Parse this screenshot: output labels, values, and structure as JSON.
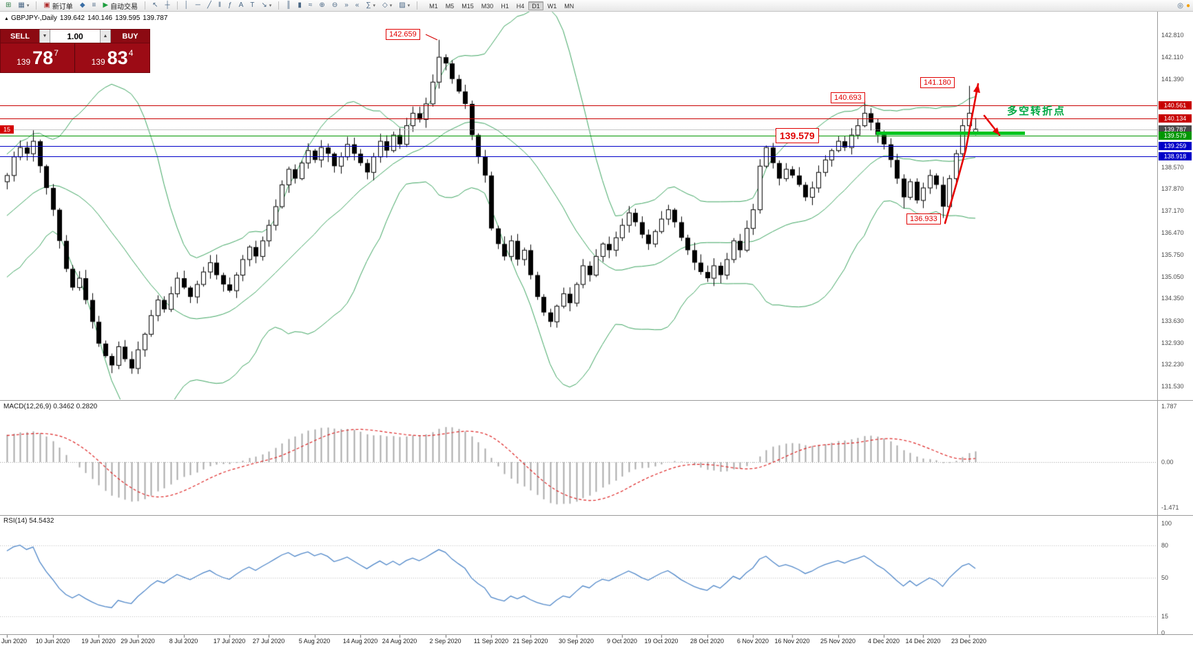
{
  "toolbar": {
    "items": [
      {
        "name": "new-chart",
        "glyph": "⊞",
        "color": "#2f7d46"
      },
      {
        "name": "profiles",
        "glyph": "▦",
        "dd": true
      },
      {
        "name": "sep"
      },
      {
        "name": "new-order",
        "glyph": "▣",
        "label": "新订单",
        "color": "#b03030"
      },
      {
        "name": "expert-advisors",
        "glyph": "◆",
        "color": "#3a6ea5"
      },
      {
        "name": "scripts",
        "glyph": "≡"
      },
      {
        "name": "autotrading",
        "glyph": "▶",
        "label": "自动交易",
        "color": "#1d9e3f"
      },
      {
        "name": "sep"
      },
      {
        "name": "cursor",
        "glyph": "↖"
      },
      {
        "name": "crosshair",
        "glyph": "┼"
      },
      {
        "name": "sep"
      },
      {
        "name": "vertical-line",
        "glyph": "│"
      },
      {
        "name": "horizontal-line",
        "glyph": "─"
      },
      {
        "name": "trendline",
        "glyph": "╱"
      },
      {
        "name": "equidistant-channel",
        "glyph": "‖"
      },
      {
        "name": "fibonacci-retracement",
        "glyph": "ƒ"
      },
      {
        "name": "text",
        "glyph": "A"
      },
      {
        "name": "text-label",
        "glyph": "T"
      },
      {
        "name": "arrows",
        "glyph": "↘",
        "dd": true
      },
      {
        "name": "sep"
      },
      {
        "name": "bar-chart",
        "glyph": "║"
      },
      {
        "name": "candlestick-chart",
        "glyph": "▮"
      },
      {
        "name": "line-chart",
        "glyph": "≈"
      },
      {
        "name": "zoom-in",
        "glyph": "⊕"
      },
      {
        "name": "zoom-out",
        "glyph": "⊖"
      },
      {
        "name": "auto-scroll",
        "glyph": "»"
      },
      {
        "name": "chart-shift",
        "glyph": "«"
      },
      {
        "name": "indicators",
        "glyph": "∑",
        "dd": true
      },
      {
        "name": "periods",
        "glyph": "◇",
        "dd": true
      },
      {
        "name": "templates",
        "glyph": "▨",
        "dd": true
      },
      {
        "name": "sep"
      }
    ],
    "timeframes": [
      {
        "label": "M1"
      },
      {
        "label": "M5"
      },
      {
        "label": "M15"
      },
      {
        "label": "M30"
      },
      {
        "label": "H1"
      },
      {
        "label": "H4"
      },
      {
        "label": "D1",
        "active": true
      },
      {
        "label": "W1"
      },
      {
        "label": "MN"
      }
    ],
    "right_icons": [
      {
        "name": "search",
        "glyph": "◎",
        "color": "#4a6785"
      },
      {
        "name": "alert",
        "glyph": "●",
        "color": "#f5a000"
      }
    ]
  },
  "ohlc_info": {
    "symbol": "GBPJPY-,Daily",
    "open": "139.642",
    "high": "140.146",
    "low": "139.595",
    "close": "139.787"
  },
  "trade_panel": {
    "sell_label": "SELL",
    "buy_label": "BUY",
    "lot_value": "1.00",
    "sell": {
      "prefix": "139",
      "big": "78",
      "sup": "7"
    },
    "buy": {
      "prefix": "139",
      "big": "83",
      "sup": "4"
    }
  },
  "left_tag": {
    "value": "15"
  },
  "annotations": {
    "peak_price": "142.659",
    "swing_high": "141.180",
    "breakout_level": "140.693",
    "entry_level": "139.579",
    "swing_low": "136.933",
    "note": "多空转折点"
  },
  "axis": {
    "price_labels": [
      "142.810",
      "142.110",
      "141.390",
      "138.570",
      "137.870",
      "137.170",
      "136.470",
      "135.750",
      "135.050",
      "134.350",
      "133.630",
      "132.930",
      "132.230",
      "131.530"
    ],
    "line_tags": [
      {
        "value": "140.561",
        "color": "#c80000",
        "style": "solid"
      },
      {
        "value": "140.134",
        "color": "#c80000",
        "style": "solid"
      },
      {
        "value": "139.787",
        "color": "#4a4a4a",
        "style": "dotted"
      },
      {
        "value": "139.579",
        "color": "#009600",
        "style": "solid"
      },
      {
        "value": "139.259",
        "color": "#0000c8",
        "style": "solid"
      },
      {
        "value": "138.918",
        "color": "#0000c8",
        "style": "solid"
      }
    ]
  },
  "macd": {
    "label": "MACD(12,26,9) 0.3462 0.2820",
    "scale": [
      {
        "v": 1.787,
        "label": "1.787"
      },
      {
        "v": 0,
        "label": "0.00"
      },
      {
        "v": -1.471,
        "label": "-1.471"
      }
    ]
  },
  "rsi": {
    "label": "RSI(14) 54.5432",
    "scale": [
      {
        "v": 100,
        "label": "100"
      },
      {
        "v": 80,
        "label": "80"
      },
      {
        "v": 50,
        "label": "50"
      },
      {
        "v": 15,
        "label": "15"
      },
      {
        "v": 0,
        "label": "0"
      }
    ],
    "levels": [
      80,
      50,
      15
    ]
  },
  "dates": [
    {
      "label": "Jun 2020",
      "i": 0
    },
    {
      "label": "10 Jun 2020",
      "i": 7
    },
    {
      "label": "19 Jun 2020",
      "i": 14
    },
    {
      "label": "29 Jun 2020",
      "i": 20
    },
    {
      "label": "8 Jul 2020",
      "i": 27
    },
    {
      "label": "17 Jul 2020",
      "i": 34
    },
    {
      "label": "27 Jul 2020",
      "i": 40
    },
    {
      "label": "5 Aug 2020",
      "i": 47
    },
    {
      "label": "14 Aug 2020",
      "i": 54
    },
    {
      "label": "24 Aug 2020",
      "i": 60
    },
    {
      "label": "2 Sep 2020",
      "i": 67
    },
    {
      "label": "11 Sep 2020",
      "i": 74
    },
    {
      "label": "21 Sep 2020",
      "i": 80
    },
    {
      "label": "30 Sep 2020",
      "i": 87
    },
    {
      "label": "9 Oct 2020",
      "i": 94
    },
    {
      "label": "19 Oct 2020",
      "i": 100
    },
    {
      "label": "28 Oct 2020",
      "i": 107
    },
    {
      "label": "6 Nov 2020",
      "i": 114
    },
    {
      "label": "16 Nov 2020",
      "i": 120
    },
    {
      "label": "25 Nov 2020",
      "i": 127
    },
    {
      "label": "4 Dec 2020",
      "i": 134
    },
    {
      "label": "14 Dec 2020",
      "i": 140
    },
    {
      "label": "23 Dec 2020",
      "i": 147
    }
  ],
  "chart_data": {
    "type": "candlestick",
    "symbol": "GBPJPY",
    "timeframe": "Daily",
    "ohlc_last_bar": {
      "open": 139.642,
      "high": 140.146,
      "low": 139.595,
      "close": 139.787
    },
    "bid": 139.787,
    "ask": 139.834,
    "y_axis_range": [
      131.11,
      143.58
    ],
    "pre_closes": [
      134.2,
      134.0,
      134.4,
      134.8,
      135.1,
      134.9,
      135.3,
      135.6,
      135.4,
      135.8,
      136.2,
      136.0,
      136.4,
      136.8,
      137.1,
      136.9,
      137.3,
      137.6,
      137.4,
      137.8,
      138.1,
      137.9,
      138.2,
      138.0,
      138.1
    ],
    "closes": [
      138.3,
      138.9,
      139.2,
      139.0,
      139.4,
      138.6,
      137.9,
      137.2,
      136.2,
      135.3,
      134.7,
      135.0,
      134.3,
      133.6,
      132.9,
      132.5,
      132.2,
      132.8,
      132.4,
      132.1,
      132.7,
      133.2,
      133.8,
      134.3,
      134.0,
      134.5,
      135.0,
      134.7,
      134.4,
      134.8,
      135.2,
      135.5,
      135.1,
      134.8,
      134.6,
      135.1,
      135.6,
      136.0,
      135.7,
      136.2,
      136.7,
      137.3,
      138.0,
      138.5,
      138.2,
      138.7,
      139.1,
      138.8,
      139.2,
      139.0,
      138.6,
      138.9,
      139.3,
      139.0,
      138.7,
      138.4,
      138.9,
      139.4,
      139.1,
      139.6,
      139.3,
      139.9,
      140.3,
      140.1,
      140.6,
      141.3,
      142.1,
      141.9,
      141.4,
      141.0,
      140.6,
      139.6,
      138.9,
      138.3,
      136.6,
      136.1,
      135.7,
      136.2,
      135.6,
      135.9,
      135.1,
      134.4,
      133.9,
      133.6,
      134.1,
      134.5,
      134.2,
      134.8,
      135.4,
      135.1,
      135.7,
      136.1,
      135.9,
      136.3,
      136.7,
      137.1,
      136.8,
      136.4,
      136.1,
      136.5,
      136.9,
      137.2,
      136.8,
      136.3,
      135.9,
      135.5,
      135.2,
      135.0,
      135.4,
      135.1,
      135.6,
      136.2,
      135.9,
      136.6,
      137.2,
      138.6,
      139.2,
      138.7,
      138.2,
      138.5,
      138.3,
      138.0,
      137.6,
      137.9,
      138.4,
      138.8,
      139.1,
      139.4,
      139.2,
      139.6,
      139.9,
      140.3,
      140.0,
      139.6,
      139.3,
      138.8,
      138.2,
      137.6,
      138.1,
      137.5,
      137.9,
      138.3,
      138.0,
      137.3,
      138.2,
      139.0,
      139.9,
      140.3,
      139.787
    ],
    "open_overrides": {
      "148": 139.642
    },
    "wick_overrides": {
      "4": {
        "high": 139.75
      },
      "16": {
        "low": 131.95
      },
      "19": {
        "low": 131.93
      },
      "66": {
        "high": 142.659
      },
      "131": {
        "high": 140.693
      },
      "137": {
        "low": 137.25
      },
      "143": {
        "low": 136.933
      },
      "147": {
        "high": 141.18
      },
      "148": {
        "high": 140.146,
        "low": 139.595
      }
    },
    "horizontal_lines": [
      {
        "price": 140.561,
        "color": "red"
      },
      {
        "price": 140.134,
        "color": "red"
      },
      {
        "price": 139.787,
        "color": "bid-dotted"
      },
      {
        "price": 139.579,
        "color": "green"
      },
      {
        "price": 139.259,
        "color": "blue"
      },
      {
        "price": 138.918,
        "color": "blue"
      }
    ],
    "support_zone_price": 139.63,
    "trend_arrow": {
      "from_price": 136.933,
      "to_price": 141.18
    },
    "indicators": [
      {
        "name": "Bollinger Bands",
        "period": 20,
        "deviation": 2
      },
      {
        "name": "MACD",
        "fast": 12,
        "slow": 26,
        "signal": 9,
        "values": [
          0.3462,
          0.282
        ],
        "range": [
          -1.471,
          1.787
        ]
      },
      {
        "name": "RSI",
        "period": 14,
        "value": 54.5432,
        "range": [
          0,
          100
        ],
        "levels": [
          80,
          50,
          15
        ]
      }
    ]
  }
}
